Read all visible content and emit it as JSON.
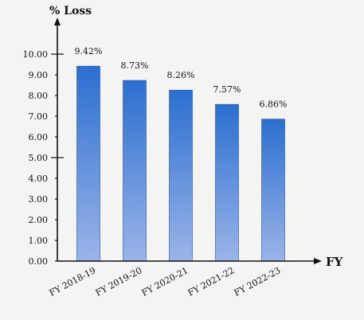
{
  "chart_data": {
    "type": "bar",
    "categories": [
      "FY 2018-19",
      "FY 2019-20",
      "FY 2020-21",
      "FY 2021-22",
      "FY 2022-23"
    ],
    "values": [
      9.42,
      8.73,
      8.26,
      7.57,
      6.86
    ],
    "data_labels": [
      "9.42%",
      "8.73%",
      "8.26%",
      "7.57%",
      "6.86%"
    ],
    "title": "",
    "xlabel": "FY",
    "ylabel": "% Loss",
    "ylim": [
      0,
      10
    ],
    "yticks": [
      0,
      1,
      2,
      3,
      4,
      5,
      6,
      7,
      8,
      9,
      10
    ],
    "ytick_labels": [
      "0.00",
      "1.00",
      "2.00",
      "3.00",
      "4.00",
      "5.00",
      "6.00",
      "7.00",
      "8.00",
      "9.00",
      "10.00"
    ],
    "grid": false,
    "legend": "none",
    "bar_color_top": "#2b6fd0",
    "bar_color_bottom": "#9bb4e8"
  }
}
